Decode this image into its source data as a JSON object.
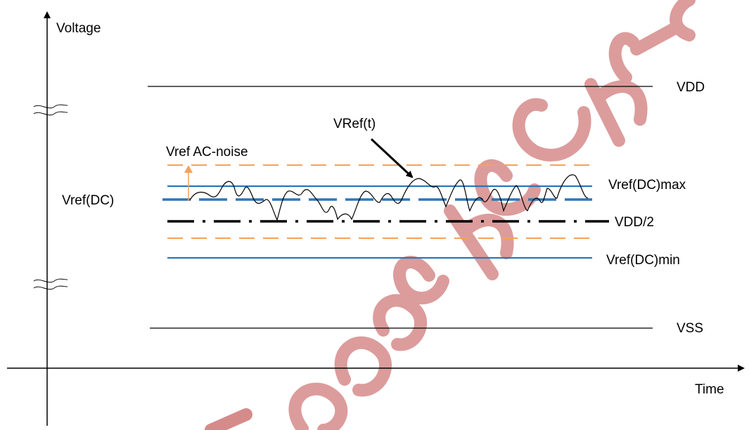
{
  "labels": {
    "y_axis": "Voltage",
    "x_axis": "Time",
    "vdd": "VDD",
    "vss": "VSS",
    "vref_dc": "Vref(DC)",
    "vref_t": "VRef(t)",
    "ac_noise": "Vref AC-noise",
    "vref_max": "Vref(DC)max",
    "vref_min": "Vref(DC)min",
    "vdd_half": "VDD/2"
  },
  "watermark_text": "Privileged and Confidential",
  "colors": {
    "axis": "#000000",
    "dc_limit": "#2e75b6",
    "ac_noise": "#f4a259",
    "watermark": "#d68b8b",
    "midline": "#000000"
  }
}
